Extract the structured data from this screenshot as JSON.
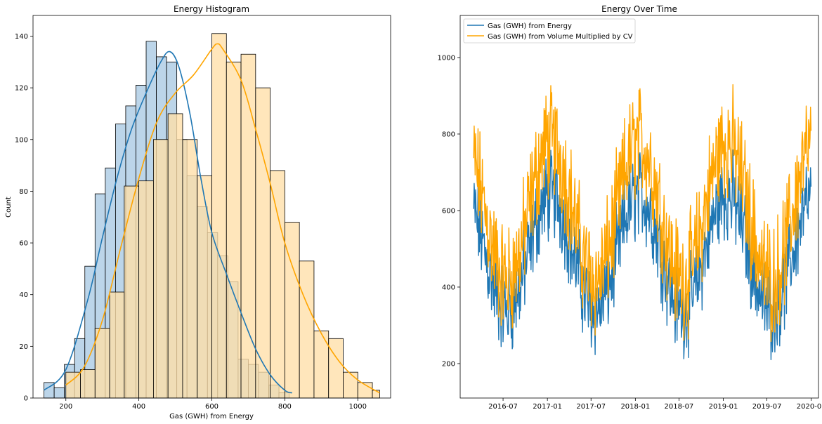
{
  "colors": {
    "energy": "#1f77b4",
    "cv": "#ffa500",
    "energy_fill": "#a9c9e3",
    "cv_fill": "#ffdfa8",
    "overlap_fill": "#cfc398"
  },
  "chart_data": [
    {
      "type": "histogram",
      "title": "Energy Histogram",
      "xlabel": "Gas (GWH) from Energy",
      "ylabel": "Count",
      "xlim": [
        110,
        1090
      ],
      "ylim": [
        0,
        148
      ],
      "xticks": [
        200,
        400,
        600,
        800,
        1000
      ],
      "yticks": [
        0,
        20,
        40,
        60,
        80,
        100,
        120,
        140
      ],
      "grid": false,
      "legend": "none",
      "series": [
        {
          "color": "#1f77b4",
          "bin_edges": [
            140,
            168,
            196,
            224,
            252,
            280,
            308,
            336,
            364,
            392,
            420,
            448,
            476,
            504,
            532,
            560,
            588,
            616,
            644,
            672,
            700,
            728,
            756,
            784,
            812
          ],
          "counts": [
            6,
            4,
            13,
            23,
            51,
            79,
            89,
            106,
            113,
            121,
            138,
            132,
            130,
            100,
            86,
            74,
            64,
            55,
            45,
            15,
            13,
            10,
            5,
            2
          ],
          "kde_x": [
            140,
            200,
            260,
            300,
            340,
            380,
            420,
            460,
            485,
            510,
            540,
            570,
            600,
            640,
            680,
            720,
            760,
            800,
            820
          ],
          "kde_y": [
            3,
            11,
            38,
            62,
            85,
            104,
            118,
            130,
            134,
            128,
            110,
            85,
            64,
            48,
            33,
            19,
            9,
            3,
            2
          ]
        },
        {
          "color": "#ffa500",
          "bin_edges": [
            200,
            240,
            280,
            320,
            360,
            400,
            440,
            480,
            520,
            560,
            600,
            640,
            680,
            720,
            760,
            800,
            840,
            880,
            920,
            960,
            1000,
            1040,
            1060
          ],
          "counts": [
            10,
            11,
            27,
            41,
            82,
            84,
            100,
            110,
            100,
            86,
            141,
            130,
            133,
            120,
            88,
            68,
            53,
            26,
            23,
            10,
            6,
            3
          ],
          "kde_x": [
            200,
            250,
            300,
            350,
            400,
            450,
            500,
            550,
            600,
            615,
            630,
            680,
            720,
            760,
            800,
            850,
            900,
            950,
            1000,
            1060
          ],
          "kde_y": [
            5,
            12,
            30,
            58,
            85,
            107,
            118,
            125,
            135,
            137,
            135,
            123,
            104,
            83,
            60,
            40,
            25,
            14,
            7,
            2
          ]
        }
      ]
    },
    {
      "type": "line",
      "title": "Energy Over Time",
      "xlabel": "",
      "ylabel": "",
      "x_range": [
        "2016-03-01",
        "2019-12-31"
      ],
      "xlim": [
        "2016-01-05",
        "2020-01-31"
      ],
      "ylim": [
        110,
        1110
      ],
      "xticks": [
        "2016-07",
        "2017-01",
        "2017-07",
        "2018-01",
        "2018-07",
        "2019-01",
        "2019-07",
        "2020-01"
      ],
      "yticks": [
        200,
        400,
        600,
        800,
        1000
      ],
      "grid": false,
      "legend": "top-left",
      "series": [
        {
          "name": "Gas (GWH) from Energy",
          "color": "#1f77b4",
          "peak": 490,
          "amplitude": 150,
          "noise": 120,
          "min": 140,
          "max": 860
        },
        {
          "name": "Gas (GWH) from Volume Multiplied by CV",
          "color": "#ffa500",
          "peak": 600,
          "amplitude": 180,
          "noise": 150,
          "min": 190,
          "max": 1060
        }
      ]
    }
  ]
}
